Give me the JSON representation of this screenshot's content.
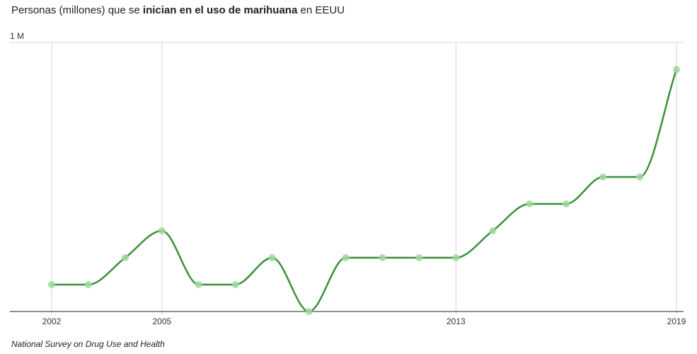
{
  "title": {
    "prefix": "Personas (millones) que se ",
    "bold": "inician en el uso de marihuana",
    "suffix": " en EEUU"
  },
  "source": "National Survey on Drug Use and Health",
  "colors": {
    "line": "#3a8f3a",
    "marker": "#9fd99a",
    "grid": "#d6d6d6",
    "axis": "#222222"
  },
  "chart_data": {
    "type": "line",
    "title": "Personas (millones) que se inician en el uso de marihuana en EEUU",
    "xlabel": "",
    "ylabel": "",
    "x": [
      2002,
      2003,
      2004,
      2005,
      2006,
      2007,
      2008,
      2009,
      2010,
      2011,
      2012,
      2013,
      2014,
      2015,
      2016,
      2017,
      2018,
      2019
    ],
    "values": [
      2.2,
      2.2,
      2.4,
      2.6,
      2.2,
      2.2,
      2.4,
      2.0,
      2.4,
      2.4,
      2.4,
      2.4,
      2.6,
      2.8,
      2.8,
      3.0,
      3.0,
      3.8
    ],
    "xlim": [
      2002,
      2019
    ],
    "ylim": [
      2.0,
      4.0
    ],
    "x_tick_labels": [
      "2002",
      "2005",
      "2013",
      "2019"
    ],
    "y_tick_labels": [
      "1 M"
    ],
    "grid": true,
    "legend": "none"
  }
}
